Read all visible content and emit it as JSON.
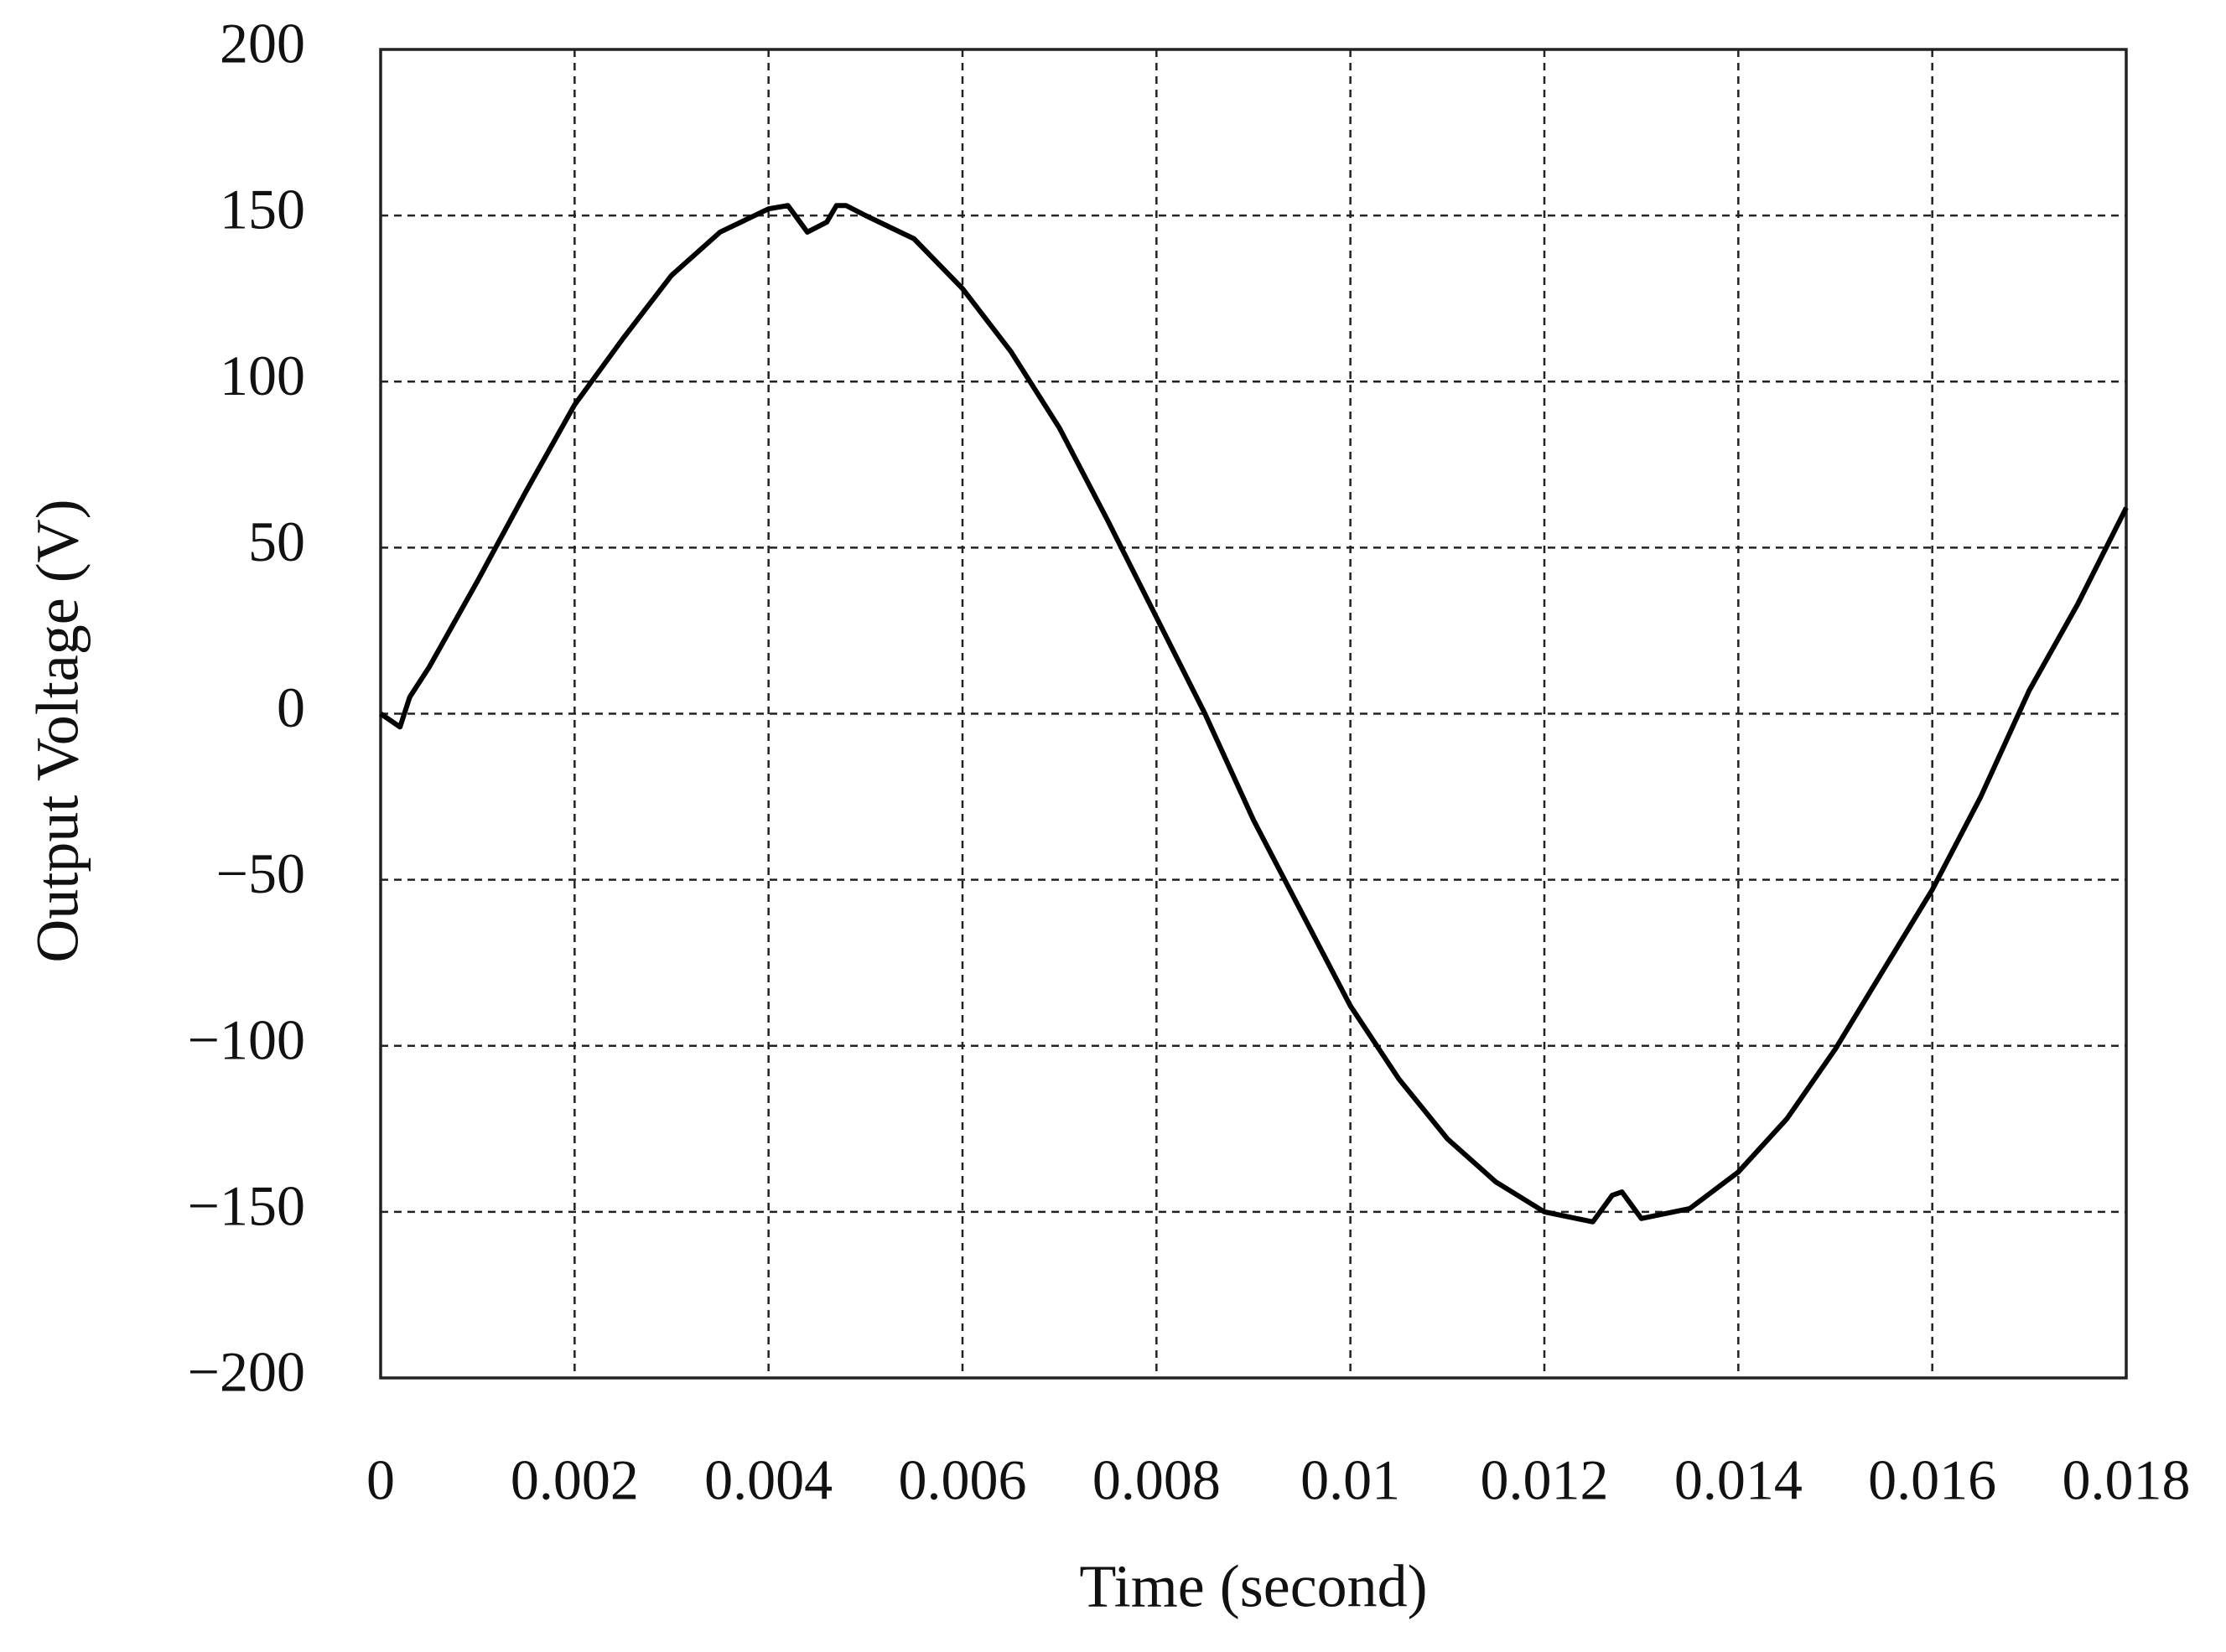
{
  "chart_data": {
    "type": "line",
    "x_label": "Time (second)",
    "y_label": "Output Voltage (V)",
    "x": [
      0,
      0.0002,
      0.0003,
      0.0005,
      0.001,
      0.0015,
      0.002,
      0.0025,
      0.003,
      0.0035,
      0.004,
      0.0042,
      0.0044,
      0.0046,
      0.0047,
      0.0048,
      0.005,
      0.0055,
      0.006,
      0.0065,
      0.007,
      0.0075,
      0.008,
      0.0085,
      0.009,
      0.0095,
      0.01,
      0.0105,
      0.011,
      0.0115,
      0.012,
      0.0125,
      0.0127,
      0.0128,
      0.013,
      0.0135,
      0.014,
      0.0145,
      0.015,
      0.0155,
      0.016,
      0.0165,
      0.017,
      0.0175,
      0.018
    ],
    "series": [
      {
        "color": "#000000",
        "values": [
          0,
          -4,
          5,
          14,
          40,
          67,
          93,
          113,
          132,
          145,
          152,
          153,
          145,
          148,
          153,
          153,
          150,
          143,
          128,
          109,
          86,
          58,
          29,
          0,
          -32,
          -60,
          -88,
          -110,
          -128,
          -141,
          -150,
          -153,
          -145,
          -144,
          -152,
          -149,
          -138,
          -122,
          -101,
          -77,
          -53,
          -25,
          7,
          33,
          62
        ]
      }
    ],
    "xlim": [
      0,
      0.018
    ],
    "ylim": [
      -200,
      200
    ],
    "xticks": [
      0,
      0.002,
      0.004,
      0.006,
      0.008,
      0.01,
      0.012,
      0.014,
      0.016,
      0.018
    ],
    "yticks": [
      {
        "value": -200,
        "label": "−200"
      },
      {
        "value": -150,
        "label": "−150"
      },
      {
        "value": -100,
        "label": "−100"
      },
      {
        "value": -50,
        "label": "−50"
      },
      0,
      50,
      100,
      150,
      200
    ],
    "grid": true
  }
}
